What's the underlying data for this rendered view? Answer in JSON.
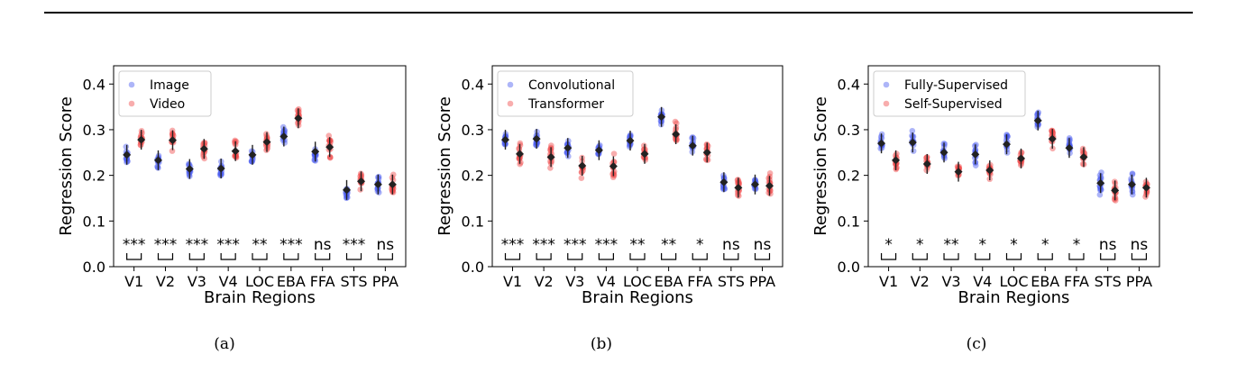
{
  "chart_data": [
    {
      "type": "scatter",
      "caption": "(a)",
      "xlabel": "Brain Regions",
      "ylabel": "Regression Score",
      "ylim": [
        0.0,
        0.44
      ],
      "yticks": [
        "0.0",
        "0.1",
        "0.2",
        "0.3",
        "0.4"
      ],
      "categories": [
        "V1",
        "V2",
        "V3",
        "V4",
        "LOC",
        "EBA",
        "FFA",
        "STS",
        "PPA"
      ],
      "legend_position": "top-left",
      "series": [
        {
          "name": "Image",
          "color": "#4a5cf0",
          "means": [
            0.245,
            0.233,
            0.214,
            0.215,
            0.245,
            0.285,
            0.252,
            0.168,
            0.18
          ],
          "spread": 0.022
        },
        {
          "name": "Video",
          "color": "#f04a4a",
          "means": [
            0.278,
            0.277,
            0.258,
            0.253,
            0.273,
            0.325,
            0.262,
            0.187,
            0.18
          ],
          "spread": 0.028
        }
      ],
      "significance": [
        "***",
        "***",
        "***",
        "***",
        "**",
        "***",
        "ns",
        "***",
        "ns"
      ]
    },
    {
      "type": "scatter",
      "caption": "(b)",
      "xlabel": "Brain Regions",
      "ylabel": "Regression Score",
      "ylim": [
        0.0,
        0.44
      ],
      "yticks": [
        "0.0",
        "0.1",
        "0.2",
        "0.3",
        "0.4"
      ],
      "categories": [
        "V1",
        "V2",
        "V3",
        "V4",
        "LOC",
        "EBA",
        "FFA",
        "STS",
        "PPA"
      ],
      "legend_position": "top-left",
      "series": [
        {
          "name": "Convolutional",
          "color": "#4a5cf0",
          "means": [
            0.278,
            0.28,
            0.26,
            0.255,
            0.276,
            0.328,
            0.265,
            0.185,
            0.18
          ],
          "spread": 0.02
        },
        {
          "name": "Transformer",
          "color": "#f04a4a",
          "means": [
            0.247,
            0.24,
            0.221,
            0.22,
            0.247,
            0.29,
            0.25,
            0.173,
            0.177
          ],
          "spread": 0.03
        }
      ],
      "significance": [
        "***",
        "***",
        "***",
        "***",
        "**",
        "**",
        "*",
        "ns",
        "ns"
      ]
    },
    {
      "type": "scatter",
      "caption": "(c)",
      "xlabel": "Brain Regions",
      "ylabel": "Regression Score",
      "ylim": [
        0.0,
        0.44
      ],
      "yticks": [
        "0.0",
        "0.1",
        "0.2",
        "0.3",
        "0.4"
      ],
      "categories": [
        "V1",
        "V2",
        "V3",
        "V4",
        "LOC",
        "EBA",
        "FFA",
        "STS",
        "PPA"
      ],
      "legend_position": "top-left",
      "series": [
        {
          "name": "Fully-Supervised",
          "color": "#4a5cf0",
          "means": [
            0.27,
            0.272,
            0.25,
            0.246,
            0.268,
            0.32,
            0.26,
            0.183,
            0.18
          ],
          "spread": 0.028
        },
        {
          "name": "Self-Supervised",
          "color": "#f04a4a",
          "means": [
            0.233,
            0.225,
            0.208,
            0.211,
            0.237,
            0.28,
            0.24,
            0.167,
            0.173
          ],
          "spread": 0.024
        }
      ],
      "significance": [
        "*",
        "*",
        "**",
        "*",
        "*",
        "*",
        "*",
        "ns",
        "ns"
      ]
    }
  ]
}
